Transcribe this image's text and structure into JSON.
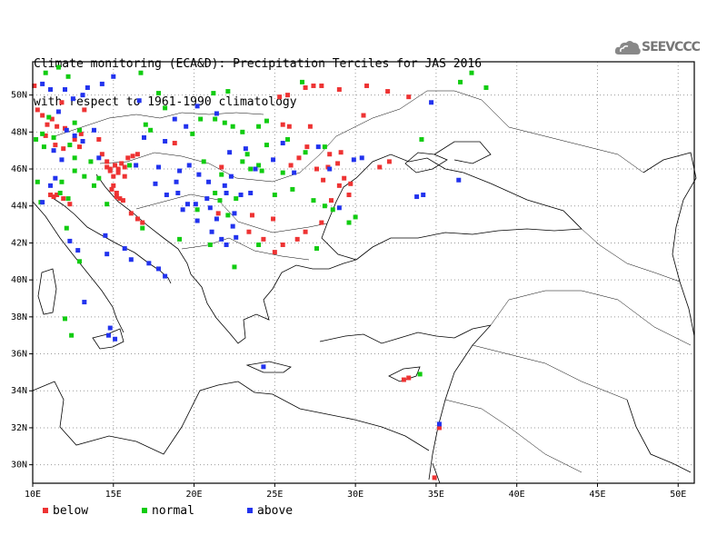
{
  "title": {
    "line1": "Climate monitoring (ECA&D): Precipitation Terciles for JAS 2016",
    "line2": "with respect to 1961-1990 climatology"
  },
  "logo": {
    "text": "SEEVCCC",
    "icon": "cloud-icon"
  },
  "axes": {
    "lon_range": [
      10,
      51
    ],
    "lat_range": [
      29,
      51.8
    ],
    "x_ticks": [
      "10E",
      "15E",
      "20E",
      "25E",
      "30E",
      "35E",
      "40E",
      "45E",
      "50E"
    ],
    "x_tick_values": [
      10,
      15,
      20,
      25,
      30,
      35,
      40,
      45,
      50
    ],
    "y_ticks": [
      "30N",
      "32N",
      "34N",
      "36N",
      "38N",
      "40N",
      "42N",
      "44N",
      "46N",
      "48N",
      "50N"
    ],
    "y_tick_values": [
      30,
      32,
      34,
      36,
      38,
      40,
      42,
      44,
      46,
      48,
      50
    ],
    "grid": true
  },
  "legend": [
    {
      "label": "below",
      "color": "#ee3333"
    },
    {
      "label": "normal",
      "color": "#11cc11"
    },
    {
      "label": "above",
      "color": "#2233ee"
    }
  ],
  "chart_data": {
    "type": "scatter",
    "xlabel": "",
    "ylabel": "",
    "series": [
      {
        "name": "below",
        "color": "#ee3333",
        "points": [
          [
            10.1,
            50.5
          ],
          [
            10.3,
            49.2
          ],
          [
            10.6,
            48.9
          ],
          [
            10.9,
            48.4
          ],
          [
            11.2,
            48.7
          ],
          [
            11.5,
            48.3
          ],
          [
            11.8,
            49.6
          ],
          [
            12.0,
            48.2
          ],
          [
            10.8,
            47.8
          ],
          [
            11.4,
            47.3
          ],
          [
            11.9,
            47.1
          ],
          [
            12.6,
            47.6
          ],
          [
            12.9,
            47.2
          ],
          [
            13.2,
            49.2
          ],
          [
            13.0,
            47.9
          ],
          [
            14.1,
            47.6
          ],
          [
            14.3,
            46.8
          ],
          [
            14.6,
            46.4
          ],
          [
            14.8,
            46.0
          ],
          [
            15.1,
            46.2
          ],
          [
            15.3,
            46.0
          ],
          [
            15.5,
            46.3
          ],
          [
            15.7,
            46.1
          ],
          [
            15.3,
            45.8
          ],
          [
            15.0,
            45.6
          ],
          [
            14.8,
            45.9
          ],
          [
            14.6,
            46.1
          ],
          [
            15.7,
            45.6
          ],
          [
            15.9,
            46.6
          ],
          [
            16.2,
            46.7
          ],
          [
            16.5,
            46.8
          ],
          [
            15.2,
            44.5
          ],
          [
            15.6,
            44.3
          ],
          [
            16.1,
            43.6
          ],
          [
            16.5,
            43.3
          ],
          [
            16.8,
            43.1
          ],
          [
            11.1,
            44.6
          ],
          [
            11.3,
            44.5
          ],
          [
            11.5,
            44.6
          ],
          [
            11.9,
            44.4
          ],
          [
            12.3,
            44.1
          ],
          [
            14.9,
            44.9
          ],
          [
            15.2,
            44.7
          ],
          [
            15.4,
            44.4
          ],
          [
            15.0,
            45.1
          ],
          [
            18.8,
            47.4
          ],
          [
            21.7,
            46.1
          ],
          [
            21.5,
            43.6
          ],
          [
            23.4,
            42.6
          ],
          [
            24.3,
            42.2
          ],
          [
            25.5,
            41.9
          ],
          [
            24.9,
            43.3
          ],
          [
            26.4,
            42.2
          ],
          [
            26.9,
            42.6
          ],
          [
            27.9,
            43.1
          ],
          [
            29.0,
            45.1
          ],
          [
            29.3,
            45.5
          ],
          [
            29.6,
            44.6
          ],
          [
            25.5,
            48.4
          ],
          [
            26.0,
            46.2
          ],
          [
            26.5,
            46.6
          ],
          [
            27.0,
            47.2
          ],
          [
            27.6,
            46.0
          ],
          [
            28.4,
            46.8
          ],
          [
            29.1,
            46.9
          ],
          [
            28.9,
            46.3
          ],
          [
            28.5,
            44.3
          ],
          [
            29.7,
            45.2
          ],
          [
            27.2,
            48.3
          ],
          [
            27.9,
            50.5
          ],
          [
            29.0,
            50.3
          ],
          [
            30.5,
            48.9
          ],
          [
            30.7,
            50.5
          ],
          [
            25.9,
            48.3
          ],
          [
            26.9,
            50.4
          ],
          [
            23.6,
            43.5
          ],
          [
            25.0,
            41.5
          ],
          [
            33.3,
            34.7
          ],
          [
            33.0,
            34.6
          ],
          [
            34.9,
            29.3
          ],
          [
            27.4,
            50.5
          ],
          [
            25.3,
            49.9
          ],
          [
            25.8,
            50.0
          ],
          [
            32.0,
            50.2
          ],
          [
            33.3,
            49.9
          ],
          [
            35.2,
            32.0
          ],
          [
            31.5,
            46.1
          ],
          [
            32.1,
            46.4
          ],
          [
            28.3,
            46.1
          ],
          [
            28.0,
            45.4
          ]
        ]
      },
      {
        "name": "normal",
        "color": "#11cc11",
        "points": [
          [
            10.2,
            47.6
          ],
          [
            10.6,
            47.9
          ],
          [
            11.0,
            48.8
          ],
          [
            11.3,
            47.7
          ],
          [
            10.8,
            51.2
          ],
          [
            11.6,
            51.5
          ],
          [
            12.2,
            51.0
          ],
          [
            10.7,
            47.2
          ],
          [
            12.6,
            48.5
          ],
          [
            12.9,
            48.1
          ],
          [
            12.3,
            47.3
          ],
          [
            12.6,
            46.6
          ],
          [
            13.6,
            46.4
          ],
          [
            14.1,
            45.5
          ],
          [
            13.8,
            45.1
          ],
          [
            11.7,
            44.7
          ],
          [
            12.2,
            44.4
          ],
          [
            10.5,
            44.2
          ],
          [
            10.3,
            45.3
          ],
          [
            12.9,
            41.0
          ],
          [
            12.0,
            37.9
          ],
          [
            12.4,
            37.0
          ],
          [
            16.7,
            51.2
          ],
          [
            17.8,
            50.1
          ],
          [
            18.2,
            49.3
          ],
          [
            19.9,
            47.9
          ],
          [
            20.4,
            48.7
          ],
          [
            21.2,
            50.1
          ],
          [
            21.9,
            48.5
          ],
          [
            22.1,
            50.2
          ],
          [
            22.4,
            48.3
          ],
          [
            23.0,
            48.0
          ],
          [
            24.5,
            48.6
          ],
          [
            24.0,
            48.3
          ],
          [
            25.8,
            47.6
          ],
          [
            25.5,
            45.8
          ],
          [
            24.2,
            45.9
          ],
          [
            23.5,
            46.0
          ],
          [
            24.0,
            46.2
          ],
          [
            25.0,
            44.6
          ],
          [
            26.1,
            44.9
          ],
          [
            27.4,
            44.3
          ],
          [
            28.1,
            44.0
          ],
          [
            28.6,
            43.8
          ],
          [
            29.6,
            43.1
          ],
          [
            30.0,
            43.4
          ],
          [
            27.6,
            41.7
          ],
          [
            24.0,
            41.9
          ],
          [
            20.6,
            46.4
          ],
          [
            21.7,
            45.7
          ],
          [
            22.6,
            44.4
          ],
          [
            22.1,
            43.5
          ],
          [
            21.3,
            44.7
          ],
          [
            21.6,
            44.3
          ],
          [
            23.3,
            46.8
          ],
          [
            17.3,
            48.1
          ],
          [
            17.0,
            48.4
          ],
          [
            19.1,
            42.2
          ],
          [
            16.8,
            42.8
          ],
          [
            12.1,
            42.8
          ],
          [
            12.6,
            45.9
          ],
          [
            13.2,
            45.6
          ],
          [
            11.8,
            45.3
          ],
          [
            14.6,
            44.1
          ],
          [
            21.0,
            41.9
          ],
          [
            22.5,
            40.7
          ],
          [
            26.9,
            46.9
          ],
          [
            28.1,
            47.2
          ],
          [
            34.0,
            34.9
          ],
          [
            37.2,
            51.2
          ],
          [
            36.5,
            50.7
          ],
          [
            38.1,
            50.4
          ],
          [
            34.1,
            47.6
          ],
          [
            26.7,
            50.7
          ],
          [
            24.5,
            47.3
          ],
          [
            16.0,
            46.2
          ],
          [
            20.2,
            43.8
          ],
          [
            23.0,
            46.4
          ],
          [
            21.3,
            48.7
          ]
        ]
      },
      {
        "name": "above",
        "color": "#2233ee",
        "points": [
          [
            10.6,
            50.6
          ],
          [
            11.1,
            50.3
          ],
          [
            12.0,
            50.3
          ],
          [
            12.5,
            49.8
          ],
          [
            13.4,
            50.4
          ],
          [
            13.1,
            50.0
          ],
          [
            14.3,
            50.6
          ],
          [
            15.0,
            51.0
          ],
          [
            11.6,
            49.1
          ],
          [
            12.1,
            48.1
          ],
          [
            12.6,
            47.8
          ],
          [
            13.1,
            47.5
          ],
          [
            11.3,
            47.0
          ],
          [
            11.8,
            46.5
          ],
          [
            11.4,
            45.5
          ],
          [
            11.1,
            45.1
          ],
          [
            10.6,
            44.2
          ],
          [
            12.3,
            42.1
          ],
          [
            12.8,
            41.6
          ],
          [
            14.6,
            41.4
          ],
          [
            14.5,
            42.4
          ],
          [
            15.7,
            41.7
          ],
          [
            16.1,
            41.1
          ],
          [
            17.2,
            40.9
          ],
          [
            17.8,
            40.6
          ],
          [
            18.2,
            40.2
          ],
          [
            14.8,
            37.4
          ],
          [
            14.7,
            37.0
          ],
          [
            15.1,
            36.8
          ],
          [
            13.2,
            38.8
          ],
          [
            16.9,
            47.7
          ],
          [
            18.2,
            47.5
          ],
          [
            18.8,
            48.7
          ],
          [
            19.5,
            48.3
          ],
          [
            20.2,
            49.4
          ],
          [
            21.4,
            49.0
          ],
          [
            23.2,
            47.1
          ],
          [
            22.2,
            46.9
          ],
          [
            19.7,
            46.2
          ],
          [
            19.1,
            45.9
          ],
          [
            18.9,
            45.3
          ],
          [
            20.3,
            45.7
          ],
          [
            20.9,
            45.3
          ],
          [
            22.3,
            45.6
          ],
          [
            22.0,
            44.7
          ],
          [
            20.8,
            44.4
          ],
          [
            20.1,
            44.1
          ],
          [
            19.6,
            44.1
          ],
          [
            19.3,
            43.8
          ],
          [
            20.2,
            43.2
          ],
          [
            21.0,
            43.9
          ],
          [
            21.4,
            43.3
          ],
          [
            21.1,
            42.6
          ],
          [
            22.4,
            42.9
          ],
          [
            21.7,
            42.2
          ],
          [
            22.0,
            41.9
          ],
          [
            22.6,
            42.3
          ],
          [
            21.9,
            45.1
          ],
          [
            22.9,
            44.6
          ],
          [
            23.5,
            44.7
          ],
          [
            25.5,
            47.4
          ],
          [
            26.2,
            45.8
          ],
          [
            24.9,
            46.5
          ],
          [
            23.8,
            46.0
          ],
          [
            27.7,
            47.2
          ],
          [
            28.4,
            46.0
          ],
          [
            29.9,
            46.5
          ],
          [
            30.4,
            46.6
          ],
          [
            29.0,
            43.9
          ],
          [
            33.8,
            44.5
          ],
          [
            34.2,
            44.6
          ],
          [
            36.4,
            45.4
          ],
          [
            34.7,
            49.6
          ],
          [
            24.3,
            35.3
          ],
          [
            35.2,
            32.2
          ],
          [
            22.5,
            43.6
          ],
          [
            17.6,
            45.2
          ],
          [
            18.3,
            44.6
          ],
          [
            16.4,
            46.2
          ],
          [
            13.8,
            48.1
          ],
          [
            14.1,
            46.6
          ],
          [
            17.8,
            46.1
          ],
          [
            16.6,
            49.7
          ],
          [
            19.0,
            44.7
          ]
        ]
      }
    ]
  }
}
